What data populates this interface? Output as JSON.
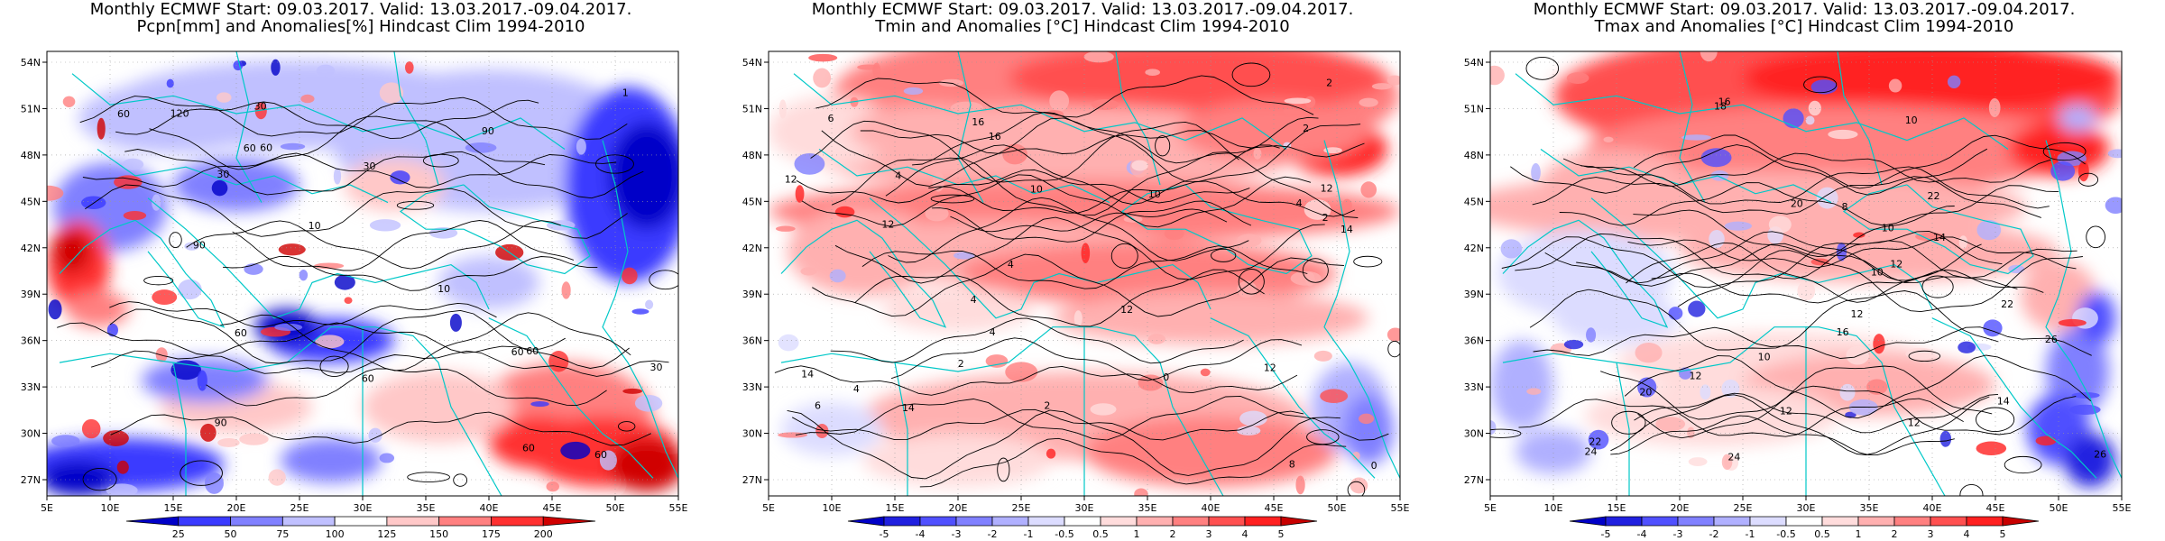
{
  "panels": [
    {
      "title_line1": "Monthly ECMWF Start: 09.03.2017. Valid: 13.03.2017.-09.04.2017.",
      "title_line2": "Pcpn[mm] and Anomalies[%] Hindcast Clim 1994-2010",
      "variable": "precipitation",
      "colorbar_labels": [
        "25",
        "50",
        "75",
        "100",
        "125",
        "150",
        "175",
        "200"
      ],
      "colorbar_colors": [
        "#0000c8",
        "#3a3aff",
        "#8080ff",
        "#c0c0ff",
        "#ffffff",
        "#ffc8c8",
        "#ff8080",
        "#ff3030",
        "#d00000"
      ],
      "contour_labels": [
        "60",
        "90",
        "60",
        "30",
        "60",
        "90",
        "60",
        "60",
        "30",
        "60",
        "60",
        "10",
        "30",
        "1",
        "10",
        "30",
        "60",
        "120",
        "60",
        "90"
      ]
    },
    {
      "title_line1": "Monthly ECMWF Start: 09.03.2017. Valid: 13.03.2017.-09.04.2017.",
      "title_line2": "Tmin and Anomalies [°C] Hindcast Clim 1994-2010",
      "variable": "tmin",
      "colorbar_labels": [
        "-5",
        "-4",
        "-3",
        "-2",
        "-1",
        "-0.5",
        "0.5",
        "1",
        "2",
        "3",
        "4",
        "5"
      ],
      "colorbar_colors": [
        "#0000c8",
        "#2020e0",
        "#5050ff",
        "#8080ff",
        "#b0b0ff",
        "#dcdcff",
        "#ffffff",
        "#ffdcdc",
        "#ffb0b0",
        "#ff8080",
        "#ff5050",
        "#ff2020",
        "#c80000"
      ],
      "contour_labels": [
        "2",
        "0",
        "2",
        "4",
        "2",
        "4",
        "6",
        "0",
        "4",
        "4",
        "4",
        "8",
        "6",
        "4",
        "2",
        "12",
        "14",
        "10",
        "12",
        "12",
        "16",
        "14",
        "10",
        "16",
        "12",
        "12",
        "14",
        "2"
      ]
    },
    {
      "title_line1": "Monthly ECMWF Start: 09.03.2017. Valid: 13.03.2017.-09.04.2017.",
      "title_line2": "Tmax and Anomalies [°C] Hindcast Clim 1994-2010",
      "variable": "tmax",
      "colorbar_labels": [
        "-5",
        "-4",
        "-3",
        "-2",
        "-1",
        "-0.5",
        "0.5",
        "1",
        "2",
        "3",
        "4",
        "5"
      ],
      "colorbar_colors": [
        "#0000c8",
        "#2020e0",
        "#5050ff",
        "#8080ff",
        "#b0b0ff",
        "#dcdcff",
        "#ffffff",
        "#ffdcdc",
        "#ffb0b0",
        "#ff8080",
        "#ff5050",
        "#ff2020",
        "#c80000"
      ],
      "contour_labels": [
        "12",
        "10",
        "8",
        "10",
        "12",
        "14",
        "12",
        "10",
        "12",
        "14",
        "10",
        "12",
        "16",
        "20",
        "22",
        "22",
        "18",
        "24",
        "26",
        "24",
        "22",
        "16",
        "26",
        "20"
      ]
    }
  ],
  "axes": {
    "lat_labels": [
      "54N",
      "51N",
      "48N",
      "45N",
      "42N",
      "39N",
      "36N",
      "33N",
      "30N",
      "27N"
    ],
    "lon_labels": [
      "5E",
      "10E",
      "15E",
      "20E",
      "25E",
      "30E",
      "35E",
      "40E",
      "45E",
      "50E",
      "55E"
    ]
  }
}
